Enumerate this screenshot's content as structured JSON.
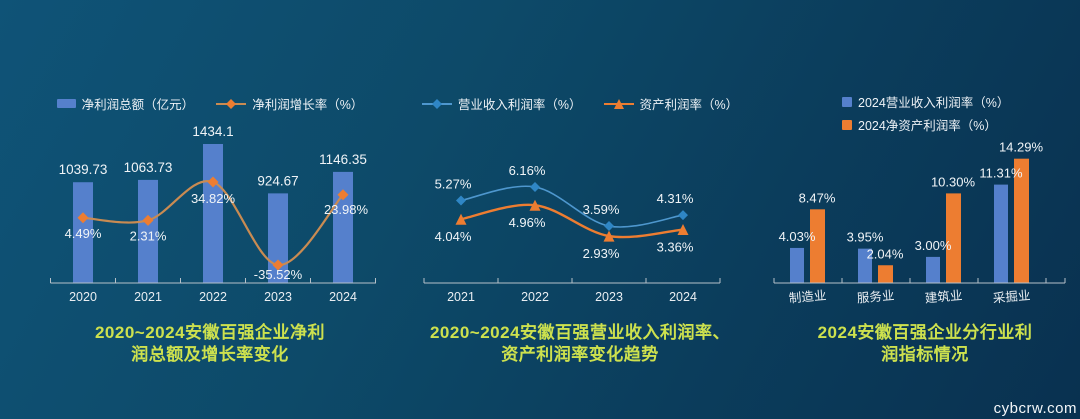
{
  "watermark": "cybcrw.com",
  "colors": {
    "title": "#cde14e",
    "axis": "#b6c1c9",
    "label_text": "#f0f4f7",
    "bar_blue": "#5580cc",
    "orange": "#ed7d31"
  },
  "chart_data": [
    {
      "type": "bar+line",
      "title": "2020~2024安徽百强企业净利润总额及增长率变化",
      "title_lines": [
        "2020~2024安徽百强企业净利",
        "润总额及增长率变化"
      ],
      "categories": [
        "2020",
        "2021",
        "2022",
        "2023",
        "2024"
      ],
      "legend_position": "top",
      "grid": false,
      "series": [
        {
          "name": "净利润总额（亿元）",
          "type": "bar",
          "color": "#5580cc",
          "values": [
            1039.73,
            1063.73,
            1434.1,
            924.67,
            1146.35
          ],
          "labels": [
            "1039.73",
            "1063.73",
            "1434.1",
            "924.67",
            "1146.35"
          ]
        },
        {
          "name": "净利润增长率（%）",
          "type": "line",
          "marker": "diamond",
          "color": "#ed7d31",
          "line_color": "#c98b52",
          "values": [
            4.49,
            2.31,
            34.82,
            -35.52,
            23.98
          ],
          "labels": [
            "4.49%",
            "2.31%",
            "34.82%",
            "-35.52%",
            "23.98%"
          ]
        }
      ]
    },
    {
      "type": "line",
      "title": "2020~2024安徽百强营业收入利润率、资产利润率变化趋势",
      "title_lines": [
        "2020~2024安徽百强营业收入利润率、",
        "资产利润率变化趋势"
      ],
      "categories": [
        "2021",
        "2022",
        "2023",
        "2024"
      ],
      "legend_position": "top",
      "grid": false,
      "series": [
        {
          "name": "营业收入利润率（%）",
          "type": "line",
          "marker": "diamond",
          "color": "#2f86c5",
          "line_color": "#4e97ce",
          "values": [
            5.27,
            6.16,
            3.59,
            4.31
          ],
          "labels": [
            "5.27%",
            "6.16%",
            "3.59%",
            "4.31%"
          ]
        },
        {
          "name": "资产利润率（%）",
          "type": "line",
          "marker": "triangle",
          "color": "#ed7d31",
          "line_color": "#ed7d31",
          "values": [
            4.04,
            4.96,
            2.93,
            3.36
          ],
          "labels": [
            "4.04%",
            "4.96%",
            "2.93%",
            "3.36%"
          ]
        }
      ]
    },
    {
      "type": "bar",
      "title": "2024安徽百强企业分行业利润指标情况",
      "title_lines": [
        "2024安徽百强企业分行业利",
        "润指标情况"
      ],
      "categories": [
        "制造业",
        "服务业",
        "建筑业",
        "采掘业"
      ],
      "legend_position": "top-right",
      "grid": false,
      "series": [
        {
          "name": "2024营业收入利润率（%）",
          "type": "bar",
          "color": "#5580cc",
          "values": [
            4.03,
            3.95,
            3.0,
            11.31
          ],
          "labels": [
            "4.03%",
            "3.95%",
            "3.00%",
            "11.31%"
          ]
        },
        {
          "name": "2024净资产利润率（%）",
          "type": "bar",
          "color": "#ed7d31",
          "values": [
            8.47,
            2.04,
            10.3,
            14.29
          ],
          "labels": [
            "8.47%",
            "2.04%",
            "10.30%",
            "14.29%"
          ]
        }
      ]
    }
  ]
}
